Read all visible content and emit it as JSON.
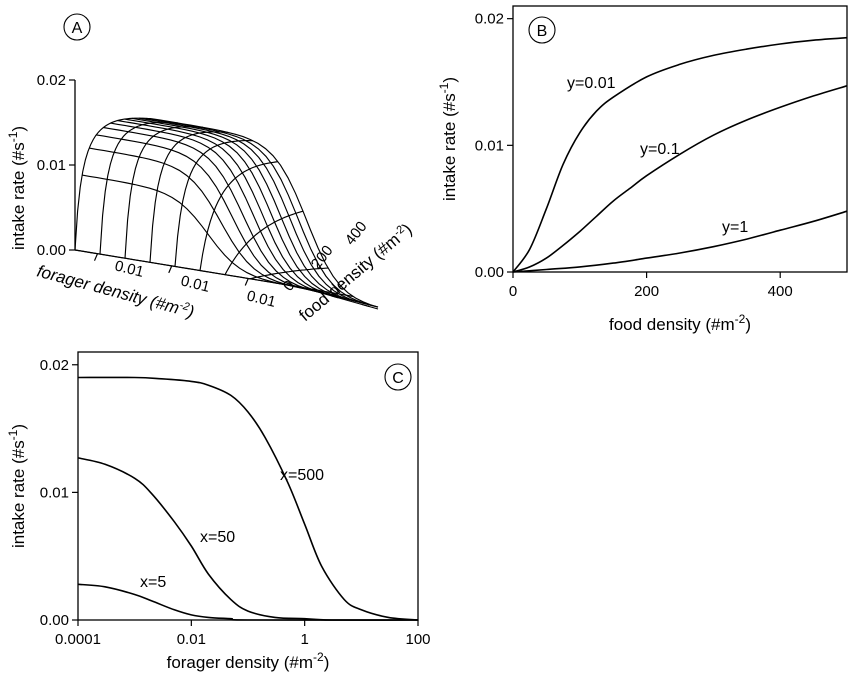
{
  "chart_data": [
    {
      "type": "surface",
      "panel_label": "A",
      "zlabel": "intake rate (#s",
      "zlabel_sup": "-1",
      "zlabel_end": ")",
      "z_ticks": [
        "0.00",
        "0.01",
        "0.02"
      ],
      "zlim": [
        0,
        0.02
      ],
      "xlabel": "forager density (#m",
      "xlabel_sup": "-2",
      "xlabel_end": ")",
      "x_ticks": [
        "0.01",
        "0.01",
        "0.01"
      ],
      "ylabel": "food density (#m",
      "ylabel_sup": "-2",
      "ylabel_end": ")",
      "y_ticks": [
        "0",
        "200",
        "400"
      ],
      "food_density_range": [
        0,
        500
      ],
      "forager_density_log_range": [
        0.0001,
        100
      ]
    },
    {
      "type": "line",
      "panel_label": "B",
      "xlabel": "food density (#m",
      "xlabel_sup": "-2",
      "xlabel_end": ")",
      "ylabel": "intake rate (#s",
      "ylabel_sup": "-1",
      "ylabel_end": ")",
      "xlim": [
        0,
        500
      ],
      "ylim": [
        0,
        0.021
      ],
      "x_ticks": [
        0,
        200,
        400
      ],
      "y_ticks": [
        0.0,
        0.01,
        0.02
      ],
      "x_tick_labels": [
        "0",
        "200",
        "400"
      ],
      "y_tick_labels": [
        "0.00",
        "0.01",
        "0.02"
      ],
      "series": [
        {
          "name": "y=0.01",
          "x": [
            0,
            25,
            50,
            75,
            100,
            125,
            150,
            200,
            250,
            300,
            350,
            400,
            450,
            500
          ],
          "y": [
            0,
            0.0018,
            0.005,
            0.0085,
            0.011,
            0.0127,
            0.0138,
            0.0154,
            0.0164,
            0.0171,
            0.0176,
            0.018,
            0.0183,
            0.0185
          ]
        },
        {
          "name": "y=0.1",
          "x": [
            0,
            25,
            50,
            75,
            100,
            125,
            150,
            175,
            200,
            250,
            300,
            350,
            400,
            450,
            500
          ],
          "y": [
            0,
            0.0004,
            0.0011,
            0.0021,
            0.0032,
            0.0044,
            0.0056,
            0.0066,
            0.0076,
            0.0093,
            0.0108,
            0.012,
            0.013,
            0.0139,
            0.0147
          ]
        },
        {
          "name": "y=1",
          "x": [
            0,
            50,
            100,
            150,
            200,
            250,
            300,
            350,
            400,
            450,
            500
          ],
          "y": [
            0,
            0.0002,
            0.0004,
            0.0007,
            0.0011,
            0.0015,
            0.002,
            0.0026,
            0.0033,
            0.004,
            0.0048
          ]
        }
      ]
    },
    {
      "type": "line",
      "panel_label": "C",
      "xscale": "log",
      "xlabel": "forager density (#m",
      "xlabel_sup": "-2",
      "xlabel_end": ")",
      "ylabel": "intake rate (#s",
      "ylabel_sup": "-1",
      "ylabel_end": ")",
      "xlim": [
        0.0001,
        100
      ],
      "ylim": [
        0,
        0.021
      ],
      "x_ticks": [
        0.0001,
        0.01,
        1,
        100
      ],
      "y_ticks": [
        0.0,
        0.01,
        0.02
      ],
      "x_tick_labels": [
        "0.0001",
        "0.01",
        "1",
        "100"
      ],
      "y_tick_labels": [
        "0.00",
        "0.01",
        "0.02"
      ],
      "series": [
        {
          "name": "x=500",
          "x": [
            0.0001,
            0.001,
            0.003,
            0.01,
            0.02,
            0.05,
            0.1,
            0.2,
            0.5,
            1,
            2,
            5,
            10,
            30,
            100
          ],
          "y": [
            0.019,
            0.019,
            0.0189,
            0.0187,
            0.0184,
            0.0176,
            0.0163,
            0.0143,
            0.0108,
            0.0075,
            0.0042,
            0.0016,
            0.0008,
            0.0002,
            0.0
          ]
        },
        {
          "name": "x=50",
          "x": [
            0.0001,
            0.0003,
            0.001,
            0.002,
            0.005,
            0.01,
            0.02,
            0.05,
            0.1,
            0.3,
            1,
            3,
            100
          ],
          "y": [
            0.0127,
            0.0122,
            0.0111,
            0.0099,
            0.0077,
            0.0058,
            0.0036,
            0.0016,
            0.0007,
            0.0002,
            0.0001,
            0.0,
            0.0
          ]
        },
        {
          "name": "x=5",
          "x": [
            0.0001,
            0.0003,
            0.001,
            0.002,
            0.005,
            0.01,
            0.02,
            0.05,
            0.1,
            100
          ],
          "y": [
            0.0028,
            0.0026,
            0.002,
            0.0015,
            0.0008,
            0.0004,
            0.0002,
            0.0001,
            0.0,
            0.0
          ]
        }
      ]
    }
  ]
}
